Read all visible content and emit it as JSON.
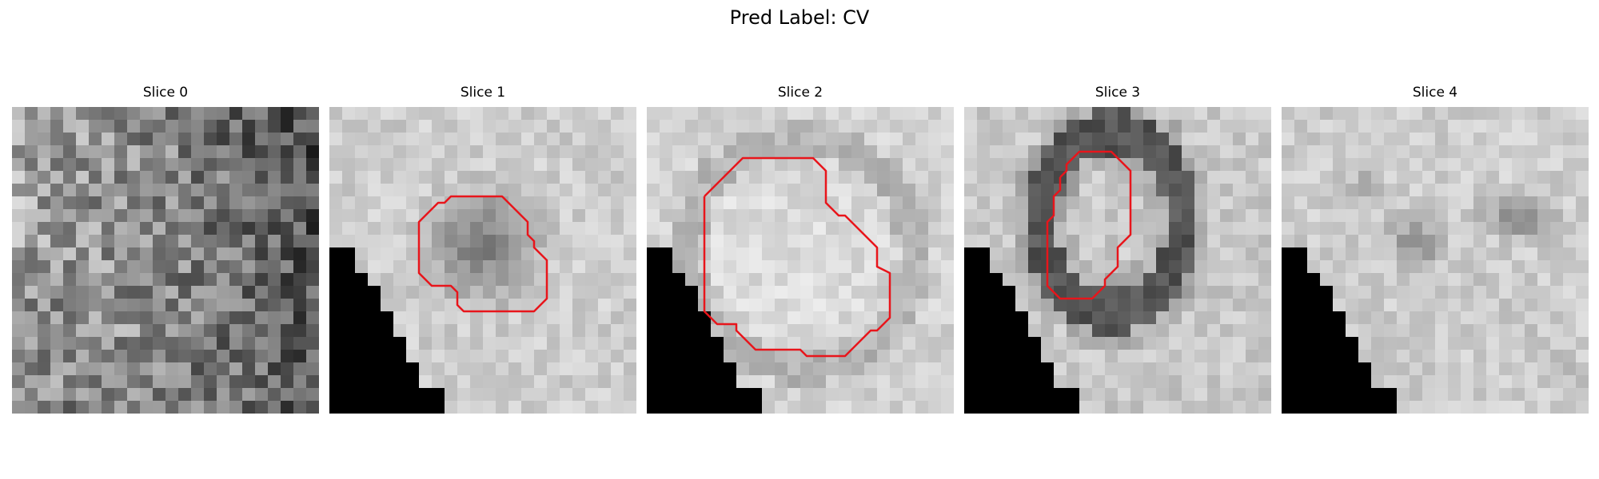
{
  "figure": {
    "title": "Pred Label: CV"
  },
  "slices": [
    {
      "title": "Slice 0",
      "has_contour": false
    },
    {
      "title": "Slice 1",
      "has_contour": true
    },
    {
      "title": "Slice 2",
      "has_contour": true
    },
    {
      "title": "Slice 3",
      "has_contour": true
    },
    {
      "title": "Slice 4",
      "has_contour": false
    }
  ],
  "colors": {
    "contour": "#e8151b",
    "mask": "#000000",
    "background": "#ffffff"
  }
}
